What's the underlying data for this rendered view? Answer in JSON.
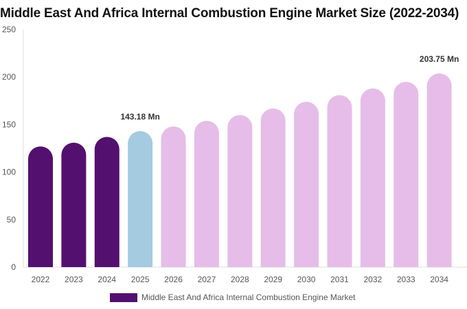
{
  "chart_data": {
    "type": "bar",
    "title": "Middle East And Africa Internal Combustion Engine Market Size (2022-2034)",
    "categories": [
      "2022",
      "2023",
      "2024",
      "2025",
      "2026",
      "2027",
      "2028",
      "2029",
      "2030",
      "2031",
      "2032",
      "2033",
      "2034"
    ],
    "series": [
      {
        "name": "Middle East And Africa Internal Combustion Engine Market",
        "values": [
          127,
          131,
          137,
          143.18,
          148,
          154,
          160,
          167,
          174,
          181,
          188,
          195,
          203.75
        ]
      }
    ],
    "ylim": [
      0,
      250
    ],
    "yticks": [
      0,
      50,
      100,
      150,
      200,
      250
    ],
    "data_labels": [
      {
        "index": 3,
        "text": "143.18 Mn"
      },
      {
        "index": 12,
        "text": "203.75 Mn"
      }
    ],
    "colors": {
      "historical": "#54106f",
      "base_year": "#a5cbe0",
      "forecast": "#e6bde8",
      "axis": "#dddddd"
    },
    "grid": false,
    "legend": "bottom"
  }
}
